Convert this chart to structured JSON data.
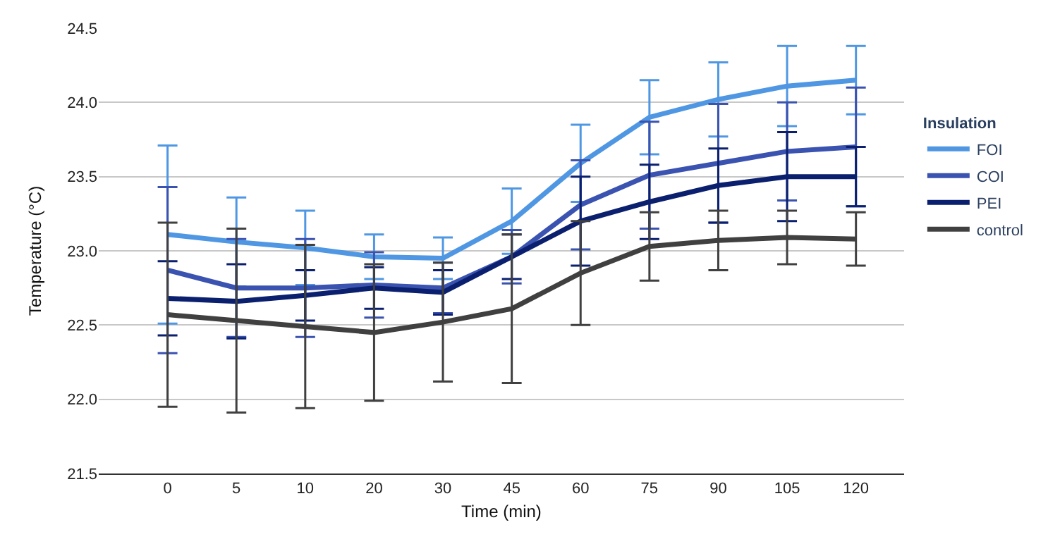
{
  "chart_data": {
    "type": "line",
    "xlabel": "Time (min)",
    "ylabel": "Temperature (°C)",
    "legend_title": "Insulation",
    "categories": [
      "0",
      "5",
      "10",
      "20",
      "30",
      "45",
      "60",
      "75",
      "90",
      "105",
      "120"
    ],
    "ylim": [
      21.5,
      24.5
    ],
    "yticks": [
      21.5,
      {
        "value": 22,
        "label": "22.0"
      },
      22.5,
      {
        "value": 23,
        "label": "23.0"
      },
      23.5,
      {
        "value": 24,
        "label": "24.0"
      },
      24.5
    ],
    "grid": "y",
    "legend": "right",
    "marker": "none",
    "line_style": "solid",
    "series": [
      {
        "name": "FOI",
        "color": "#4f97e3",
        "values": [
          23.11,
          23.06,
          23.02,
          22.96,
          22.95,
          23.2,
          23.59,
          23.9,
          24.02,
          24.11,
          24.15
        ],
        "errors": [
          0.6,
          0.3,
          0.25,
          0.15,
          0.14,
          0.22,
          0.26,
          0.25,
          0.25,
          0.27,
          0.23
        ]
      },
      {
        "name": "COI",
        "color": "#3a52b0",
        "values": [
          22.87,
          22.75,
          22.75,
          22.77,
          22.75,
          22.96,
          23.31,
          23.51,
          23.59,
          23.67,
          23.7
        ],
        "errors": [
          0.56,
          0.33,
          0.33,
          0.22,
          0.17,
          0.18,
          0.3,
          0.36,
          0.4,
          0.33,
          0.4
        ]
      },
      {
        "name": "PEI",
        "color": "#0a1f6e",
        "values": [
          22.68,
          22.66,
          22.7,
          22.75,
          22.72,
          22.96,
          23.2,
          23.33,
          23.44,
          23.5,
          23.5
        ],
        "errors": [
          0.25,
          0.25,
          0.17,
          0.14,
          0.15,
          0.15,
          0.3,
          0.25,
          0.25,
          0.3,
          0.2
        ]
      },
      {
        "name": "control",
        "color": "#404040",
        "values": [
          22.57,
          22.53,
          22.49,
          22.45,
          22.52,
          22.61,
          22.85,
          23.03,
          23.07,
          23.09,
          23.08
        ],
        "errors": [
          0.62,
          0.62,
          0.55,
          0.46,
          0.4,
          0.5,
          0.35,
          0.23,
          0.2,
          0.18,
          0.18
        ]
      }
    ]
  }
}
